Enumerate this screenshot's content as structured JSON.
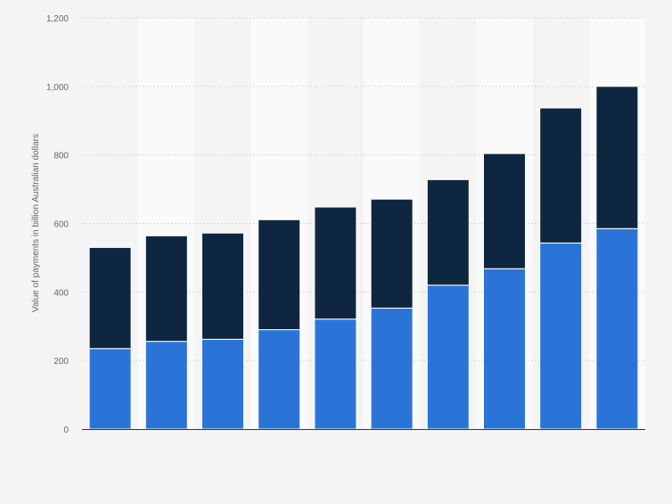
{
  "chart_data": {
    "type": "bar",
    "stacked": true,
    "title": "",
    "xlabel": "",
    "ylabel": "Value of payments in billion Australian dollars",
    "ylim": [
      0,
      1200
    ],
    "yticks": [
      0,
      200,
      400,
      600,
      800,
      1000,
      1200
    ],
    "ytick_labels": [
      "0",
      "200",
      "400",
      "600",
      "800",
      "1,000",
      "1,200"
    ],
    "categories": [
      "",
      "",
      "",
      "",
      "",
      "",
      "",
      "",
      "",
      ""
    ],
    "grid": true,
    "legend": "none",
    "series": [
      {
        "color": "#2a74d8",
        "values": [
          235,
          256,
          262,
          290,
          321,
          353,
          420,
          468,
          543,
          585
        ]
      },
      {
        "color": "#0f2640",
        "values": [
          295,
          308,
          310,
          321,
          327,
          318,
          308,
          336,
          394,
          415
        ]
      }
    ],
    "colors": {
      "background": "#f4f4f4",
      "band": "#fafafa",
      "grid": "#d6d6d6",
      "axis": "#333333",
      "tick_text": "#666666"
    }
  }
}
